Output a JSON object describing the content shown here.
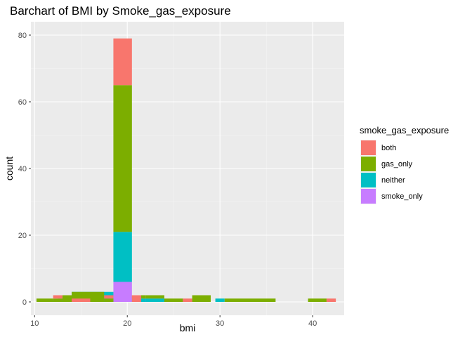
{
  "chart_data": {
    "type": "bar",
    "title": "Barchart of BMI by Smoke_gas_exposure",
    "xlabel": "bmi",
    "ylabel": "count",
    "xlim": [
      9.6,
      43.4
    ],
    "ylim": [
      -4,
      84
    ],
    "x_ticks": [
      10,
      20,
      30,
      40
    ],
    "y_ticks": [
      0,
      20,
      40,
      60,
      80
    ],
    "grid": true,
    "legend": {
      "title": "smoke_gas_exposure",
      "position": "right"
    },
    "bin_width": 2,
    "series": [
      {
        "name": "smoke_only",
        "color": "#C77CFF",
        "bins": [
          {
            "x0": 12.0,
            "x1": 14.0,
            "value": 0.5
          },
          {
            "x0": 14.0,
            "x1": 18.0,
            "value": 1
          },
          {
            "x0": 18.5,
            "x1": 20.5,
            "value": 6
          },
          {
            "x0": 20.5,
            "x1": 24.0,
            "value": 1
          },
          {
            "x0": 24.0,
            "x1": 28.0,
            "value": 0.5
          }
        ]
      },
      {
        "name": "neither",
        "color": "#00BFC4",
        "bins": [
          {
            "x0": 11.5,
            "x1": 12.5,
            "value": 0.5
          },
          {
            "x0": 12.5,
            "x1": 14.0,
            "value": 1
          },
          {
            "x0": 14.0,
            "x1": 18.5,
            "value": 3
          },
          {
            "x0": 18.5,
            "x1": 20.5,
            "value": 15
          },
          {
            "x0": 20.5,
            "x1": 22.0,
            "value": 1
          },
          {
            "x0": 22.0,
            "x1": 24.0,
            "value": 1
          },
          {
            "x0": 29.5,
            "x1": 30.5,
            "value": 1
          }
        ]
      },
      {
        "name": "gas_only",
        "color": "#7CAE00",
        "bins": [
          {
            "x0": 10.2,
            "x1": 12.0,
            "value": 1
          },
          {
            "x0": 12.0,
            "x1": 13.0,
            "value": 1
          },
          {
            "x0": 13.0,
            "x1": 14.0,
            "value": 2
          },
          {
            "x0": 14.0,
            "x1": 17.5,
            "value": 3
          },
          {
            "x0": 17.5,
            "x1": 18.5,
            "value": 1
          },
          {
            "x0": 18.5,
            "x1": 20.5,
            "value": 44
          },
          {
            "x0": 20.5,
            "x1": 22.0,
            "value": 1
          },
          {
            "x0": 22.0,
            "x1": 24.0,
            "value": 1
          },
          {
            "x0": 24.0,
            "x1": 26.0,
            "value": 1
          },
          {
            "x0": 27.0,
            "x1": 29.0,
            "value": 2
          },
          {
            "x0": 30.5,
            "x1": 36.0,
            "value": 1
          },
          {
            "x0": 39.5,
            "x1": 41.5,
            "value": 1
          }
        ]
      },
      {
        "name": "both",
        "color": "#F8766D",
        "bins": [
          {
            "x0": 12.0,
            "x1": 13.0,
            "value": 1
          },
          {
            "x0": 14.0,
            "x1": 16.0,
            "value": 1
          },
          {
            "x0": 17.5,
            "x1": 18.5,
            "value": 1
          },
          {
            "x0": 18.5,
            "x1": 20.5,
            "value": 14
          },
          {
            "x0": 20.5,
            "x1": 21.5,
            "value": 2
          },
          {
            "x0": 26.0,
            "x1": 27.0,
            "value": 1
          },
          {
            "x0": 41.5,
            "x1": 42.5,
            "value": 1
          }
        ]
      }
    ]
  }
}
